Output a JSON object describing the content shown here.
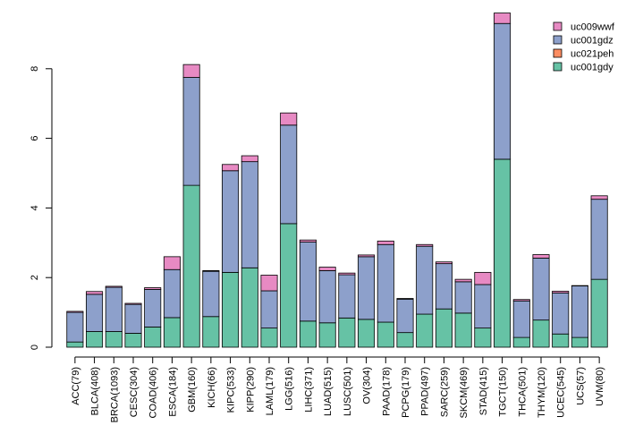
{
  "chart_data": {
    "type": "bar",
    "stacked": true,
    "title": "",
    "xlabel": "",
    "ylabel": "",
    "ylim": [
      0,
      9.6
    ],
    "yticks": [
      0,
      2,
      4,
      6,
      8
    ],
    "grid": false,
    "legend_position": "top-right",
    "categories": [
      "ACC(79)",
      "BLCA(408)",
      "BRCA(1093)",
      "CESC(304)",
      "COAD(406)",
      "ESCA(184)",
      "GBM(160)",
      "KICH(66)",
      "KIPC(533)",
      "KIPP(290)",
      "LAML(179)",
      "LGG(516)",
      "LIHC(371)",
      "LUAD(515)",
      "LUSC(501)",
      "OV(304)",
      "PAAD(178)",
      "PCPG(179)",
      "PPAD(497)",
      "SARC(259)",
      "SKCM(469)",
      "STAD(415)",
      "TGCT(150)",
      "THCA(501)",
      "THYM(120)",
      "UCEC(545)",
      "UCS(57)",
      "UVM(80)"
    ],
    "series": [
      {
        "name": "uc001gdy",
        "color": "#66c2a5",
        "values": [
          0.15,
          0.45,
          0.45,
          0.4,
          0.58,
          0.85,
          4.65,
          0.88,
          2.15,
          2.28,
          0.55,
          3.55,
          0.75,
          0.7,
          0.84,
          0.8,
          0.72,
          0.42,
          0.95,
          1.1,
          0.98,
          0.55,
          5.4,
          0.28,
          0.78,
          0.38,
          0.28,
          1.95
        ]
      },
      {
        "name": "uc021peh",
        "color": "#fc8d62",
        "values": [
          0,
          0,
          0,
          0,
          0,
          0,
          0,
          0,
          0,
          0,
          0,
          0,
          0,
          0,
          0,
          0,
          0,
          0,
          0,
          0,
          0,
          0,
          0,
          0,
          0,
          0,
          0,
          0
        ]
      },
      {
        "name": "uc001gdz",
        "color": "#8da0cb",
        "values": [
          0.85,
          1.07,
          1.27,
          0.83,
          1.08,
          1.38,
          3.1,
          1.3,
          2.92,
          3.05,
          1.07,
          2.83,
          2.27,
          1.5,
          1.24,
          1.8,
          2.23,
          0.96,
          1.95,
          1.3,
          0.9,
          1.25,
          3.9,
          1.05,
          1.78,
          1.18,
          1.48,
          2.3
        ]
      },
      {
        "name": "uc009wwf",
        "color": "#e78ac3",
        "values": [
          0.03,
          0.08,
          0.03,
          0.03,
          0.05,
          0.37,
          0.37,
          0.02,
          0.18,
          0.17,
          0.45,
          0.35,
          0.06,
          0.1,
          0.05,
          0.05,
          0.1,
          0.02,
          0.05,
          0.05,
          0.07,
          0.35,
          0.3,
          0.04,
          0.1,
          0.05,
          0.01,
          0.1
        ]
      }
    ]
  }
}
